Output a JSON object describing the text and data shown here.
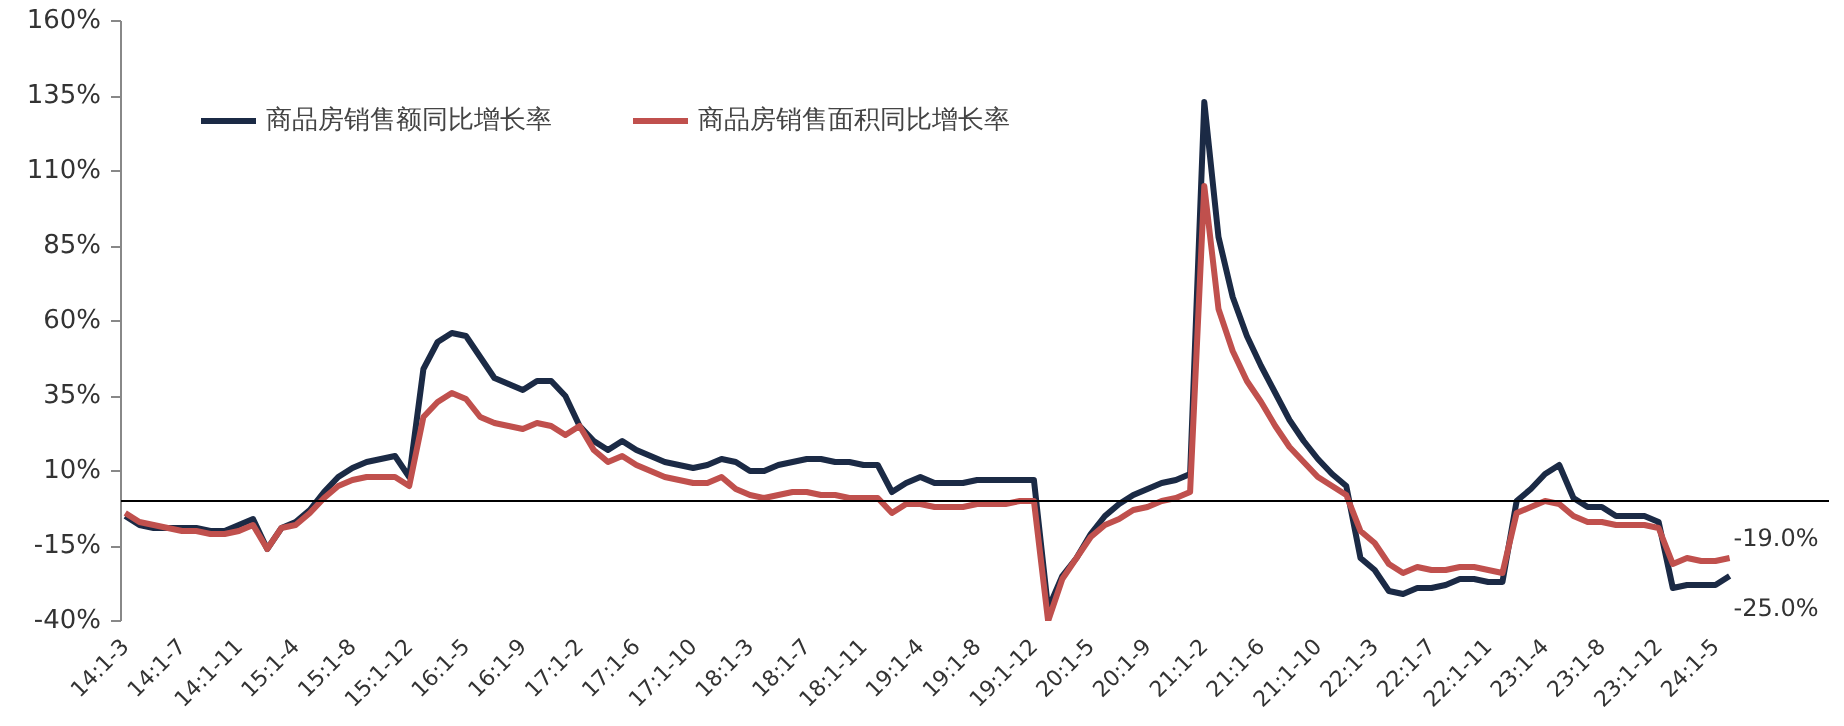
{
  "chart_data": {
    "type": "line",
    "categories": [
      "14:1-3",
      null,
      null,
      null,
      "14:1-7",
      null,
      null,
      null,
      "14:1-11",
      null,
      null,
      null,
      "15:1-4",
      null,
      null,
      null,
      "15:1-8",
      null,
      null,
      null,
      "15:1-12",
      null,
      null,
      null,
      "16:1-5",
      null,
      null,
      null,
      "16:1-9",
      null,
      null,
      null,
      "17:1-2",
      null,
      null,
      null,
      "17:1-6",
      null,
      null,
      null,
      "17:1-10",
      null,
      null,
      null,
      "18:1-3",
      null,
      null,
      null,
      "18:1-7",
      null,
      null,
      null,
      "18:1-11",
      null,
      null,
      null,
      "19:1-4",
      null,
      null,
      null,
      "19:1-8",
      null,
      null,
      null,
      "19:1-12",
      null,
      null,
      null,
      "20:1-5",
      null,
      null,
      null,
      "20:1-9",
      null,
      null,
      null,
      "21:1-2",
      null,
      null,
      null,
      "21:1-6",
      null,
      null,
      null,
      "21:1-10",
      null,
      null,
      null,
      "22:1-3",
      null,
      null,
      null,
      "22:1-7",
      null,
      null,
      null,
      "22:1-11",
      null,
      null,
      null,
      "23:1-4",
      null,
      null,
      null,
      "23:1-8",
      null,
      null,
      null,
      "23:1-12",
      null,
      null,
      null,
      "24:1-5",
      null
    ],
    "series": [
      {
        "name": "商品房销售额同比增长率",
        "color": "#1b2a45",
        "values": [
          -5,
          -8,
          -9,
          -9,
          -9,
          -9,
          -10,
          -10,
          -8,
          -6,
          -16,
          -9,
          -7,
          -3,
          3,
          8,
          11,
          13,
          14,
          15,
          8,
          44,
          53,
          56,
          55,
          48,
          41,
          39,
          37,
          40,
          40,
          35,
          25,
          20,
          17,
          20,
          17,
          15,
          13,
          12,
          11,
          12,
          14,
          13,
          10,
          10,
          12,
          13,
          14,
          14,
          13,
          13,
          12,
          12,
          3,
          6,
          8,
          6,
          6,
          6,
          7,
          7,
          7,
          7,
          7,
          -36,
          -25,
          -19,
          -11,
          -5,
          -1,
          2,
          4,
          6,
          7,
          9,
          133,
          88,
          68,
          55,
          45,
          36,
          27,
          20,
          14,
          9,
          5,
          -19,
          -23,
          -30,
          -31,
          -29,
          -29,
          -28,
          -26,
          -26,
          -27,
          -27,
          0,
          4,
          9,
          12,
          1,
          -2,
          -2,
          -5,
          -5,
          -5,
          -7,
          -29,
          -28,
          -28,
          -28,
          -25
        ],
        "value_labels": [
          null,
          null,
          null,
          null,
          null,
          null,
          null,
          null,
          null,
          null,
          null,
          null,
          null,
          null,
          null,
          null,
          null,
          null,
          null,
          null,
          null,
          null,
          null,
          null,
          null,
          null,
          null,
          null,
          null,
          null,
          null,
          null,
          null,
          null,
          null,
          null,
          null,
          null,
          null,
          null,
          null,
          null,
          null,
          null,
          null,
          null,
          null,
          null,
          null,
          null,
          null,
          null,
          null,
          null,
          null,
          null,
          null,
          null,
          null,
          null,
          null,
          null,
          null,
          null,
          null,
          null,
          null,
          null,
          null,
          null,
          null,
          null,
          null,
          null,
          null,
          null,
          null,
          null,
          null,
          null,
          null,
          null,
          null,
          null,
          null,
          null,
          null,
          null,
          null,
          null,
          null,
          null,
          null,
          null,
          null,
          null,
          null,
          null,
          null,
          null,
          null,
          null,
          null,
          null,
          null,
          null,
          null,
          null,
          null,
          null,
          null,
          null,
          null,
          "-25.0%"
        ]
      },
      {
        "name": "商品房销售面积同比增长率",
        "color": "#c0504d",
        "values": [
          -4,
          -7,
          -8,
          -9,
          -10,
          -10,
          -11,
          -11,
          -10,
          -8,
          -16,
          -9,
          -8,
          -4,
          1,
          5,
          7,
          8,
          8,
          8,
          5,
          28,
          33,
          36,
          34,
          28,
          26,
          25,
          24,
          26,
          25,
          22,
          25,
          17,
          13,
          15,
          12,
          10,
          8,
          7,
          6,
          6,
          8,
          4,
          2,
          1,
          2,
          3,
          3,
          2,
          2,
          1,
          1,
          1,
          -4,
          -1,
          -1,
          -2,
          -2,
          -2,
          -1,
          -1,
          -1,
          0,
          0,
          -40,
          -26,
          -19,
          -12,
          -8,
          -6,
          -3,
          -2,
          0,
          1,
          3,
          105,
          64,
          50,
          40,
          33,
          25,
          18,
          13,
          8,
          5,
          2,
          -10,
          -14,
          -21,
          -24,
          -22,
          -23,
          -23,
          -22,
          -22,
          -23,
          -24,
          -4,
          -2,
          0,
          -1,
          -5,
          -7,
          -7,
          -8,
          -8,
          -8,
          -9,
          -21,
          -19,
          -20,
          -20,
          -19
        ],
        "value_labels": [
          null,
          null,
          null,
          null,
          null,
          null,
          null,
          null,
          null,
          null,
          null,
          null,
          null,
          null,
          null,
          null,
          null,
          null,
          null,
          null,
          null,
          null,
          null,
          null,
          null,
          null,
          null,
          null,
          null,
          null,
          null,
          null,
          null,
          null,
          null,
          null,
          null,
          null,
          null,
          null,
          null,
          null,
          null,
          null,
          null,
          null,
          null,
          null,
          null,
          null,
          null,
          null,
          null,
          null,
          null,
          null,
          null,
          null,
          null,
          null,
          null,
          null,
          null,
          null,
          null,
          null,
          null,
          null,
          null,
          null,
          null,
          null,
          null,
          null,
          null,
          null,
          null,
          null,
          null,
          null,
          null,
          null,
          null,
          null,
          null,
          null,
          null,
          null,
          null,
          null,
          null,
          null,
          null,
          null,
          null,
          null,
          null,
          null,
          null,
          null,
          null,
          null,
          null,
          null,
          null,
          null,
          null,
          null,
          null,
          null,
          null,
          null,
          null,
          "-19.0%"
        ]
      }
    ],
    "ylim": [
      -40,
      160
    ],
    "yticks": [
      {
        "value": -40,
        "label": "-40%"
      },
      {
        "value": -15,
        "label": "-15%"
      },
      {
        "value": 10,
        "label": "10%"
      },
      {
        "value": 35,
        "label": "35%"
      },
      {
        "value": 60,
        "label": "60%"
      },
      {
        "value": 85,
        "label": "85%"
      },
      {
        "value": 110,
        "label": "110%"
      },
      {
        "value": 135,
        "label": "135%"
      },
      {
        "value": 160,
        "label": "160%"
      }
    ],
    "ref_lines": [
      {
        "axis": "y",
        "value": 0,
        "label": null,
        "color": "#000000"
      }
    ],
    "grid": false,
    "legend": "top left",
    "marker": "none",
    "line_style": "solid"
  }
}
